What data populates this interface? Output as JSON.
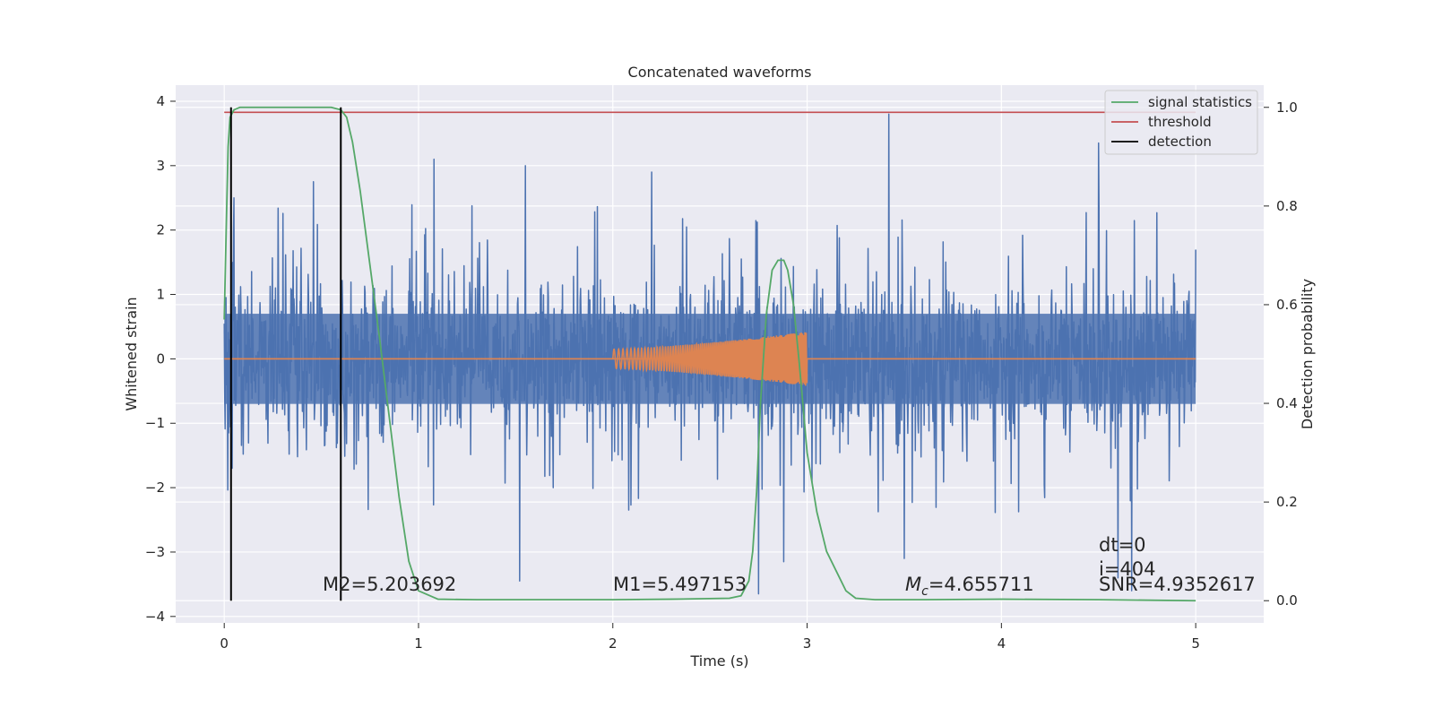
{
  "chart_data": {
    "type": "line",
    "title": "Concatenated waveforms",
    "xlabel": "Time (s)",
    "ylabel": "Whitened strain",
    "y2label": "Detection probability",
    "xlim": [
      -0.25,
      5.35
    ],
    "ylim": [
      -4.1,
      4.25
    ],
    "y2lim": [
      -0.045,
      1.045
    ],
    "xticks": [
      0,
      1,
      2,
      3,
      4,
      5
    ],
    "xtick_labels": [
      "0",
      "1",
      "2",
      "3",
      "4",
      "5"
    ],
    "yticks": [
      -4,
      -3,
      -2,
      -1,
      0,
      1,
      2,
      3,
      4
    ],
    "ytick_labels": [
      "−4",
      "−3",
      "−2",
      "−1",
      "0",
      "1",
      "2",
      "3",
      "4"
    ],
    "y2ticks": [
      0.0,
      0.2,
      0.4,
      0.6,
      0.8,
      1.0
    ],
    "y2tick_labels": [
      "0.0",
      "0.2",
      "0.4",
      "0.6",
      "0.8",
      "1.0"
    ],
    "grid": true,
    "legend_position": "top-right",
    "series": [
      {
        "name": "",
        "axis": "left",
        "color": "#4c72b0",
        "kind": "noise",
        "x_range": [
          0,
          5
        ],
        "core_amplitude": 0.7,
        "spike_peaks_approx": [
          {
            "x": 0.05,
            "y": 2.5
          },
          {
            "x": 0.46,
            "y": 2.75
          },
          {
            "x": 1.08,
            "y": 3.1
          },
          {
            "x": 1.55,
            "y": 3.0
          },
          {
            "x": 2.2,
            "y": 2.9
          },
          {
            "x": 3.42,
            "y": 3.8
          },
          {
            "x": 4.5,
            "y": 3.35
          },
          {
            "x": 1.52,
            "y": -3.45
          },
          {
            "x": 2.75,
            "y": -3.65
          },
          {
            "x": 2.88,
            "y": -3.15
          },
          {
            "x": 4.6,
            "y": -3.4
          },
          {
            "x": 4.67,
            "y": -3.6
          },
          {
            "x": 3.5,
            "y": -3.1
          },
          {
            "x": 0.04,
            "y": -1.7
          }
        ]
      },
      {
        "name": "",
        "axis": "left",
        "color": "#dd8452",
        "kind": "chirp",
        "flat_range": [
          0,
          5
        ],
        "chirp_range": [
          2.0,
          3.0
        ],
        "amplitude_start": 0.15,
        "amplitude_end": 0.42
      },
      {
        "name": "signal statistics",
        "axis": "right",
        "color": "#55a868",
        "x": [
          0.0,
          0.01,
          0.02,
          0.03,
          0.05,
          0.08,
          0.15,
          0.3,
          0.45,
          0.55,
          0.6,
          0.63,
          0.66,
          0.7,
          0.75,
          0.8,
          0.85,
          0.9,
          0.95,
          1.0,
          1.1,
          1.3,
          1.6,
          2.0,
          2.3,
          2.6,
          2.66,
          2.7,
          2.72,
          2.74,
          2.76,
          2.79,
          2.82,
          2.85,
          2.88,
          2.9,
          2.93,
          2.96,
          3.0,
          3.05,
          3.1,
          3.15,
          3.2,
          3.25,
          3.35,
          3.6,
          4.0,
          4.5,
          5.0
        ],
        "y": [
          0.57,
          0.75,
          0.92,
          0.98,
          0.995,
          1.0,
          1.0,
          1.0,
          1.0,
          1.0,
          0.995,
          0.98,
          0.93,
          0.83,
          0.68,
          0.53,
          0.37,
          0.21,
          0.08,
          0.02,
          0.003,
          0.002,
          0.002,
          0.002,
          0.003,
          0.005,
          0.01,
          0.04,
          0.1,
          0.22,
          0.4,
          0.58,
          0.67,
          0.69,
          0.69,
          0.67,
          0.6,
          0.48,
          0.3,
          0.18,
          0.1,
          0.06,
          0.02,
          0.005,
          0.002,
          0.002,
          0.003,
          0.002,
          0.0
        ]
      },
      {
        "name": "threshold",
        "axis": "right",
        "color": "#c44e52",
        "x": [
          0,
          5
        ],
        "y": [
          0.99,
          0.99
        ]
      },
      {
        "name": "detection",
        "axis": "right",
        "color": "#000000",
        "kind": "vlines",
        "x": [
          0.035,
          0.6
        ],
        "y_span": [
          0.0,
          1.0
        ]
      }
    ],
    "annotations": {
      "m2": "M2=5.203692",
      "m1": "M1=5.497153",
      "mc_symbol": "M",
      "mc_sub": "c",
      "mc_value": "=4.655711",
      "dt": "dt=0",
      "index": "i=404",
      "snr": "SNR=4.9352617"
    }
  }
}
